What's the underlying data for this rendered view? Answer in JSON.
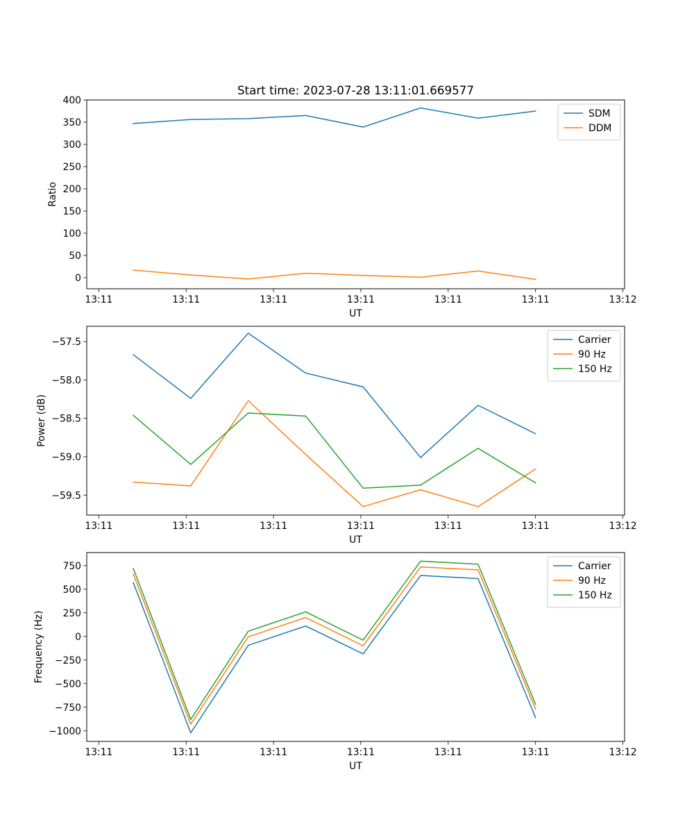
{
  "chart_data": [
    {
      "type": "line",
      "title": "Start time: 2023-07-28 13:11:01.669577",
      "xlabel": "UT",
      "ylabel": "Ratio",
      "x": [
        1,
        2,
        3,
        4,
        5,
        6,
        7,
        8
      ],
      "xlim": [
        0.19,
        9.55
      ],
      "xticks": [
        0.4,
        1.92,
        3.44,
        4.96,
        6.48,
        8.0,
        9.52
      ],
      "xtick_labels": [
        "13:11",
        "13:11",
        "13:11",
        "13:11",
        "13:11",
        "13:11",
        "13:12"
      ],
      "ylim": [
        -25,
        400
      ],
      "yticks": [
        0,
        50,
        100,
        150,
        200,
        250,
        300,
        350,
        400
      ],
      "ytick_labels": [
        "0",
        "50",
        "100",
        "150",
        "200",
        "250",
        "300",
        "350",
        "400"
      ],
      "legend_position": "top-right",
      "series": [
        {
          "name": "SDM",
          "color": "#1f77b4",
          "values": [
            347,
            356,
            358,
            365,
            339,
            382,
            359,
            375
          ]
        },
        {
          "name": "DDM",
          "color": "#ff7f0e",
          "values": [
            17,
            6,
            -3,
            10,
            5,
            1,
            15,
            -4
          ]
        }
      ]
    },
    {
      "type": "line",
      "title": "",
      "xlabel": "UT",
      "ylabel": "Power (dB)",
      "x": [
        1,
        2,
        3,
        4,
        5,
        6,
        7,
        8
      ],
      "xlim": [
        0.19,
        9.55
      ],
      "xticks": [
        0.4,
        1.92,
        3.44,
        4.96,
        6.48,
        8.0,
        9.52
      ],
      "xtick_labels": [
        "13:11",
        "13:11",
        "13:11",
        "13:11",
        "13:11",
        "13:11",
        "13:12"
      ],
      "ylim": [
        -59.76,
        -57.3
      ],
      "yticks": [
        -59.5,
        -59.0,
        -58.5,
        -58.0,
        -57.5
      ],
      "ytick_labels": [
        "−59.5",
        "−59.0",
        "−58.5",
        "−58.0",
        "−57.5"
      ],
      "legend_position": "top-right",
      "series": [
        {
          "name": "Carrier",
          "color": "#1f77b4",
          "values": [
            -57.67,
            -58.24,
            -57.39,
            -57.91,
            -58.09,
            -59.01,
            -58.33,
            -58.7
          ]
        },
        {
          "name": "90 Hz",
          "color": "#ff7f0e",
          "values": [
            -59.33,
            -59.38,
            -58.27,
            -58.97,
            -59.65,
            -59.43,
            -59.65,
            -59.16
          ]
        },
        {
          "name": "150 Hz",
          "color": "#2ca02c",
          "values": [
            -58.46,
            -59.1,
            -58.43,
            -58.47,
            -59.41,
            -59.37,
            -58.89,
            -59.34
          ]
        }
      ]
    },
    {
      "type": "line",
      "title": "",
      "xlabel": "UT",
      "ylabel": "Frequency (Hz)",
      "x": [
        1,
        2,
        3,
        4,
        5,
        6,
        7,
        8
      ],
      "xlim": [
        0.19,
        9.55
      ],
      "xticks": [
        0.4,
        1.92,
        3.44,
        4.96,
        6.48,
        8.0,
        9.52
      ],
      "xtick_labels": [
        "13:11",
        "13:11",
        "13:11",
        "13:11",
        "13:11",
        "13:11",
        "13:12"
      ],
      "ylim": [
        -1112,
        888
      ],
      "yticks": [
        -1000,
        -750,
        -500,
        -250,
        0,
        250,
        500,
        750
      ],
      "ytick_labels": [
        "−1000",
        "−750",
        "−500",
        "−250",
        "0",
        "250",
        "500",
        "750"
      ],
      "legend_position": "top-right",
      "series": [
        {
          "name": "Carrier",
          "color": "#1f77b4",
          "values": [
            570,
            -1022,
            -95,
            110,
            -185,
            645,
            612,
            -860
          ]
        },
        {
          "name": "90 Hz",
          "color": "#ff7f0e",
          "values": [
            660,
            -930,
            -5,
            200,
            -100,
            735,
            705,
            -770
          ]
        },
        {
          "name": "150 Hz",
          "color": "#2ca02c",
          "values": [
            720,
            -880,
            55,
            260,
            -40,
            797,
            765,
            -720
          ]
        }
      ]
    }
  ]
}
